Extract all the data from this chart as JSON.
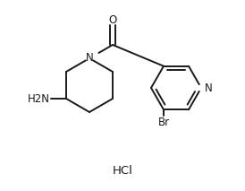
{
  "bg_color": "#ffffff",
  "line_color": "#1a1a1a",
  "line_width": 1.4,
  "font_size": 8.5,
  "hcl_text": "HCl",
  "n_pip_label": "N",
  "o_label": "O",
  "n_pyr_label": "N",
  "h2n_label": "H2N",
  "br_label": "Br"
}
